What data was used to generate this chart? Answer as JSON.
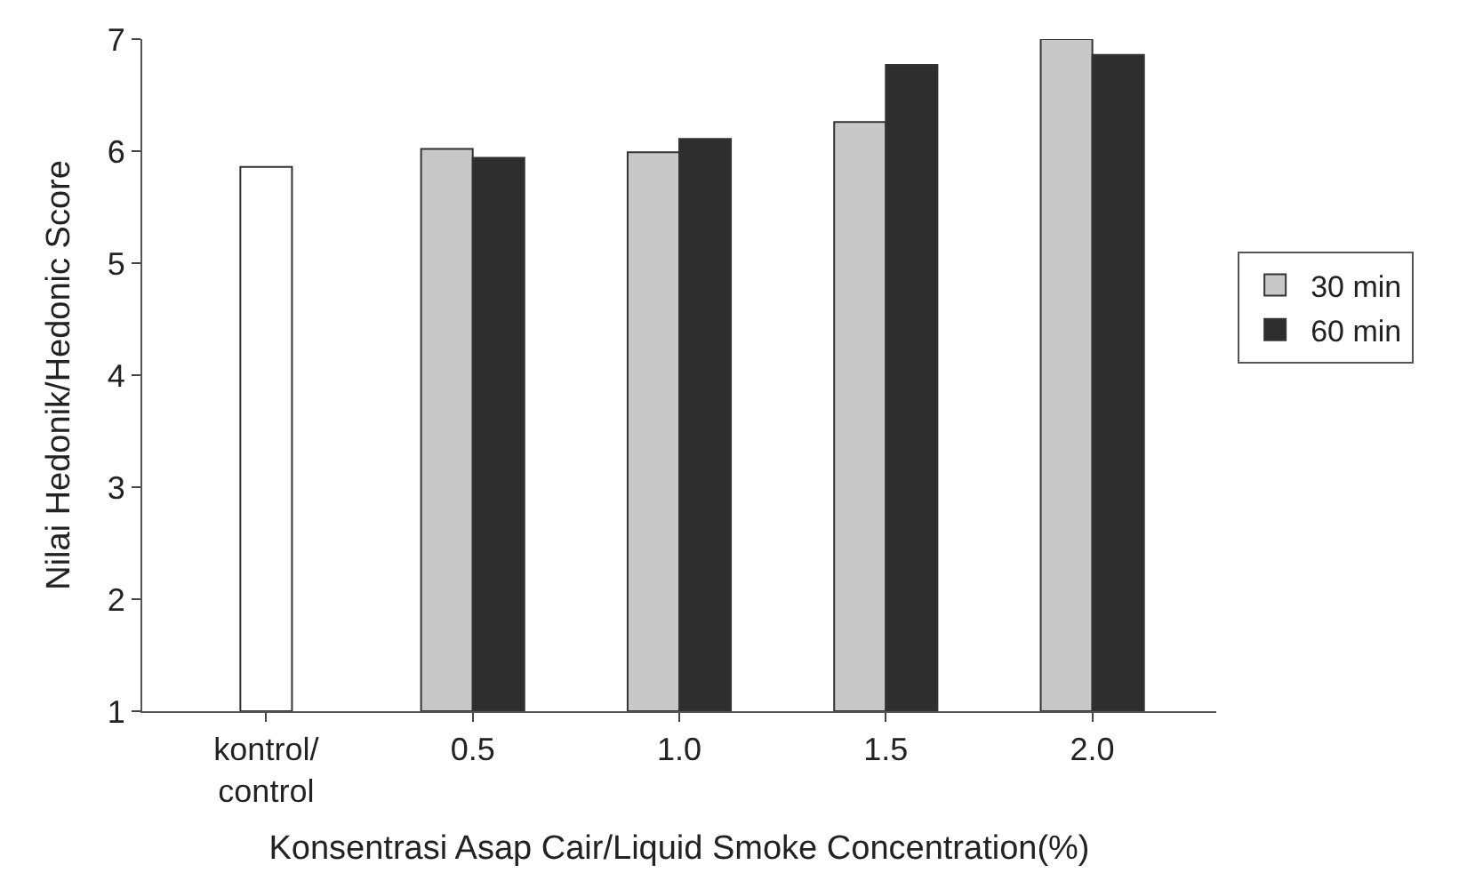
{
  "chart_data": {
    "type": "bar",
    "categories": [
      "kontrol/control",
      "0.5",
      "1.0",
      "1.5",
      "2.0"
    ],
    "series": [
      {
        "color": "#ffffff",
        "values": [
          5.86,
          null,
          null,
          null,
          null
        ]
      },
      {
        "name": "30 min",
        "color": "#c8c8c8",
        "values": [
          null,
          6.02,
          5.99,
          6.26,
          7.0
        ]
      },
      {
        "name": "60 min",
        "color": "#2e2e2e",
        "values": [
          null,
          5.94,
          6.11,
          6.77,
          6.86
        ]
      }
    ],
    "xlabel": "Konsentrasi Asap Cair/Liquid Smoke Concentration(%)",
    "ylabel": "Nilai Hedonik/Hedonic Score",
    "ylim": [
      1,
      7
    ],
    "yticks": [
      1,
      2,
      3,
      4,
      5,
      6,
      7
    ],
    "legend": "right"
  }
}
